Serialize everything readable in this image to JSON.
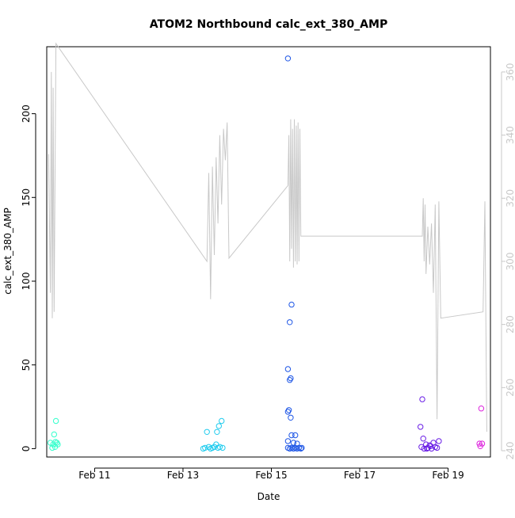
{
  "chart_data": {
    "type": "scatter",
    "title": "ATOM2 Northbound calc_ext_380_AMP",
    "xlabel": "Date",
    "ylabel": "calc_ext_380_AMP",
    "xlim": [
      "2024-02-09T22:00",
      "2024-02-19T23:00"
    ],
    "ylim": [
      -5,
      240
    ],
    "x_ticks": [
      {
        "date": "2024-02-11",
        "label": "Feb 11"
      },
      {
        "date": "2024-02-13",
        "label": "Feb 13"
      },
      {
        "date": "2024-02-15",
        "label": "Feb 15"
      },
      {
        "date": "2024-02-17",
        "label": "Feb 17"
      },
      {
        "date": "2024-02-19",
        "label": "Feb 19"
      }
    ],
    "y_ticks": [
      0,
      50,
      100,
      150,
      200
    ],
    "y2_ticks": [
      240,
      260,
      280,
      300,
      320,
      340,
      360
    ],
    "y2lim": [
      238,
      368
    ],
    "grid": false,
    "legend": "none",
    "series": [
      {
        "color": "#33ffcc",
        "points": [
          [
            "2024-02-10T00:00",
            3.5
          ],
          [
            "2024-02-10T01:00",
            0.5
          ],
          [
            "2024-02-10T01:30",
            2.5
          ],
          [
            "2024-02-10T02:00",
            8.5
          ],
          [
            "2024-02-10T02:30",
            1.0
          ],
          [
            "2024-02-10T03:00",
            16.5
          ],
          [
            "2024-02-10T03:30",
            3.5
          ],
          [
            "2024-02-10T04:00",
            2.5
          ],
          [
            "2024-02-10T02:45",
            4.0
          ]
        ]
      },
      {
        "color": "#22ccee",
        "points": [
          [
            "2024-02-13T11:00",
            0.0
          ],
          [
            "2024-02-13T12:00",
            0.5
          ],
          [
            "2024-02-13T13:00",
            10.0
          ],
          [
            "2024-02-13T14:00",
            1.0
          ],
          [
            "2024-02-13T15:00",
            0.0
          ],
          [
            "2024-02-13T16:00",
            0.5
          ],
          [
            "2024-02-13T17:00",
            1.0
          ],
          [
            "2024-02-13T18:00",
            2.5
          ],
          [
            "2024-02-13T18:30",
            10.0
          ],
          [
            "2024-02-13T19:00",
            0.5
          ],
          [
            "2024-02-13T19:30",
            13.5
          ],
          [
            "2024-02-13T20:00",
            1.0
          ],
          [
            "2024-02-13T21:00",
            16.5
          ],
          [
            "2024-02-13T21:30",
            0.5
          ]
        ]
      },
      {
        "color": "#1e56e6",
        "points": [
          [
            "2024-02-15T09:00",
            233.0
          ],
          [
            "2024-02-15T11:00",
            86.0
          ],
          [
            "2024-02-15T10:00",
            75.5
          ],
          [
            "2024-02-15T09:00",
            47.5
          ],
          [
            "2024-02-15T10:30",
            42.0
          ],
          [
            "2024-02-15T10:00",
            41.0
          ],
          [
            "2024-02-15T09:30",
            23.0
          ],
          [
            "2024-02-15T09:00",
            22.0
          ],
          [
            "2024-02-15T10:30",
            18.5
          ],
          [
            "2024-02-15T11:00",
            8.0
          ],
          [
            "2024-02-15T13:00",
            8.0
          ],
          [
            "2024-02-15T09:00",
            4.5
          ],
          [
            "2024-02-15T12:00",
            3.5
          ],
          [
            "2024-02-15T14:00",
            3.0
          ],
          [
            "2024-02-15T09:00",
            0.5
          ],
          [
            "2024-02-15T10:00",
            0.0
          ],
          [
            "2024-02-15T11:00",
            0.5
          ],
          [
            "2024-02-15T12:00",
            0.0
          ],
          [
            "2024-02-15T13:00",
            0.5
          ],
          [
            "2024-02-15T14:00",
            0.0
          ],
          [
            "2024-02-15T15:00",
            0.5
          ],
          [
            "2024-02-15T16:00",
            0.0
          ],
          [
            "2024-02-15T16:30",
            0.5
          ]
        ]
      },
      {
        "color": "#6a1ee6",
        "points": [
          [
            "2024-02-18T10:00",
            29.5
          ],
          [
            "2024-02-18T09:00",
            13.0
          ],
          [
            "2024-02-18T10:30",
            6.0
          ],
          [
            "2024-02-18T09:30",
            1.0
          ],
          [
            "2024-02-18T11:00",
            0.0
          ],
          [
            "2024-02-18T12:00",
            2.5
          ],
          [
            "2024-02-18T13:00",
            0.5
          ],
          [
            "2024-02-18T14:00",
            2.0
          ],
          [
            "2024-02-18T15:00",
            0.0
          ],
          [
            "2024-02-18T16:00",
            3.5
          ],
          [
            "2024-02-18T17:00",
            1.0
          ],
          [
            "2024-02-18T18:00",
            0.5
          ],
          [
            "2024-02-18T19:00",
            4.5
          ],
          [
            "2024-02-18T12:30",
            0.0
          ],
          [
            "2024-02-18T14:30",
            1.5
          ]
        ]
      },
      {
        "color": "#dd22dd",
        "points": [
          [
            "2024-02-19T18:00",
            24.0
          ],
          [
            "2024-02-19T17:00",
            3.0
          ],
          [
            "2024-02-19T17:30",
            1.5
          ],
          [
            "2024-02-19T18:30",
            3.0
          ]
        ]
      }
    ],
    "secondary_line": {
      "color": "#c8c8c8",
      "axis": "right",
      "points": [
        [
          "2024-02-09T23:00",
          334
        ],
        [
          "2024-02-10T00:00",
          290
        ],
        [
          "2024-02-10T00:30",
          360
        ],
        [
          "2024-02-10T01:00",
          282
        ],
        [
          "2024-02-10T01:30",
          355
        ],
        [
          "2024-02-10T02:00",
          284
        ],
        [
          "2024-02-10T03:00",
          369
        ],
        [
          "2024-02-13T13:00",
          300
        ],
        [
          "2024-02-13T14:00",
          328
        ],
        [
          "2024-02-13T15:00",
          288
        ],
        [
          "2024-02-13T16:00",
          330
        ],
        [
          "2024-02-13T17:00",
          302
        ],
        [
          "2024-02-13T18:00",
          333
        ],
        [
          "2024-02-13T19:00",
          312
        ],
        [
          "2024-02-13T20:00",
          340
        ],
        [
          "2024-02-13T21:00",
          318
        ],
        [
          "2024-02-13T22:00",
          342
        ],
        [
          "2024-02-13T23:00",
          332
        ],
        [
          "2024-02-14T00:00",
          344
        ],
        [
          "2024-02-14T01:00",
          301
        ],
        [
          "2024-02-15T09:00",
          324
        ],
        [
          "2024-02-15T09:30",
          340
        ],
        [
          "2024-02-15T10:00",
          300
        ],
        [
          "2024-02-15T10:30",
          345
        ],
        [
          "2024-02-15T11:00",
          304
        ],
        [
          "2024-02-15T11:30",
          342
        ],
        [
          "2024-02-15T12:00",
          298
        ],
        [
          "2024-02-15T12:30",
          345
        ],
        [
          "2024-02-15T13:00",
          300
        ],
        [
          "2024-02-15T13:30",
          343
        ],
        [
          "2024-02-15T14:00",
          299
        ],
        [
          "2024-02-15T14:30",
          344
        ],
        [
          "2024-02-15T15:00",
          300
        ],
        [
          "2024-02-15T15:30",
          342
        ],
        [
          "2024-02-15T16:00",
          308
        ],
        [
          "2024-02-18T10:00",
          308
        ],
        [
          "2024-02-18T10:30",
          320
        ],
        [
          "2024-02-18T11:00",
          300
        ],
        [
          "2024-02-18T11:30",
          318
        ],
        [
          "2024-02-18T12:00",
          296
        ],
        [
          "2024-02-18T13:00",
          311
        ],
        [
          "2024-02-18T14:00",
          299
        ],
        [
          "2024-02-18T15:00",
          312
        ],
        [
          "2024-02-18T16:00",
          290
        ],
        [
          "2024-02-18T17:00",
          318
        ],
        [
          "2024-02-18T18:00",
          250
        ],
        [
          "2024-02-18T19:00",
          319
        ],
        [
          "2024-02-18T20:00",
          282
        ],
        [
          "2024-02-19T19:00",
          284
        ],
        [
          "2024-02-19T20:00",
          319
        ],
        [
          "2024-02-19T21:00",
          246
        ]
      ]
    }
  }
}
